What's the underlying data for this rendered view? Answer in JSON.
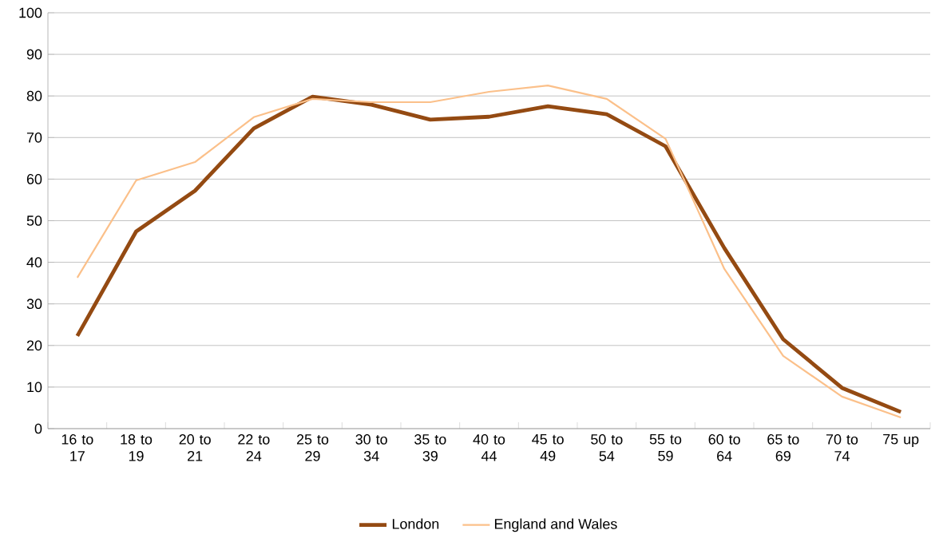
{
  "chart_data": {
    "type": "line",
    "categories": [
      "16 to 17",
      "18 to 19",
      "20 to 21",
      "22 to 24",
      "25 to 29",
      "30 to 34",
      "35 to 39",
      "40 to 44",
      "45 to 49",
      "50 to 54",
      "55 to 59",
      "60 to 64",
      "65 to 69",
      "70 to 74",
      "75 up"
    ],
    "series": [
      {
        "name": "London",
        "color": "#944a12",
        "values": [
          22.3,
          47.4,
          57.2,
          72.2,
          79.8,
          77.9,
          74.3,
          75.0,
          77.5,
          75.6,
          67.9,
          43.4,
          21.5,
          9.8,
          4.0
        ]
      },
      {
        "name": "England and Wales",
        "color": "#fbc08a",
        "values": [
          36.3,
          59.7,
          64.1,
          74.9,
          79.3,
          78.5,
          78.5,
          81.0,
          82.5,
          79.3,
          69.7,
          38.4,
          17.5,
          7.7,
          2.7
        ]
      }
    ],
    "ylim": [
      0,
      100
    ],
    "yticks": [
      0,
      10,
      20,
      30,
      40,
      50,
      60,
      70,
      80,
      90,
      100
    ],
    "grid": "y",
    "legend": "bottom",
    "marker": "none",
    "line_style": "solid"
  }
}
